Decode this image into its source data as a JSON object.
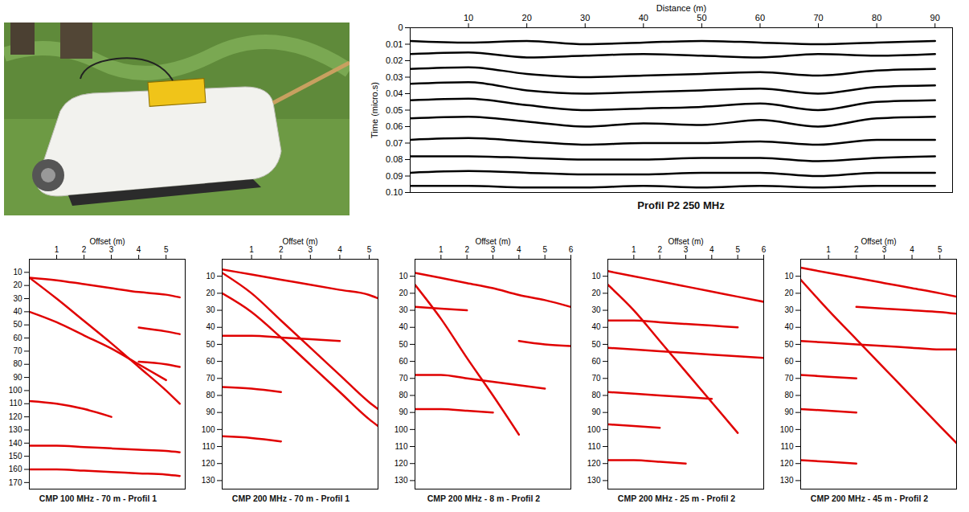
{
  "chart_data": [
    {
      "type": "line",
      "title": "Profil P2 250 MHz",
      "xlabel": "Distance (m)",
      "ylabel": "Time (micro.s)",
      "xlim": [
        0,
        93
      ],
      "xticks": [
        10,
        20,
        30,
        40,
        50,
        60,
        70,
        80,
        90
      ],
      "ylim": [
        0,
        0.1
      ],
      "yticks": [
        0,
        0.01,
        0.02,
        0.03,
        0.04,
        0.05,
        0.06,
        0.07,
        0.08,
        0.09,
        {
          "value": 0.1,
          "label": "0.10"
        }
      ],
      "x": [
        0,
        10,
        20,
        30,
        40,
        50,
        60,
        70,
        80,
        90
      ],
      "series": [
        {
          "color": "#000000",
          "values": [
            0.008,
            0.009,
            0.008,
            0.01,
            0.009,
            0.008,
            0.009,
            0.01,
            0.009,
            0.008
          ]
        },
        {
          "color": "#000000",
          "values": [
            0.016,
            0.015,
            0.018,
            0.017,
            0.016,
            0.017,
            0.018,
            0.016,
            0.017,
            0.016
          ]
        },
        {
          "color": "#000000",
          "values": [
            0.025,
            0.024,
            0.028,
            0.03,
            0.029,
            0.028,
            0.027,
            0.029,
            0.026,
            0.025
          ]
        },
        {
          "color": "#000000",
          "values": [
            0.034,
            0.033,
            0.038,
            0.04,
            0.039,
            0.038,
            0.037,
            0.04,
            0.036,
            0.035
          ]
        },
        {
          "color": "#000000",
          "values": [
            0.044,
            0.043,
            0.047,
            0.05,
            0.049,
            0.048,
            0.046,
            0.05,
            0.045,
            0.044
          ]
        },
        {
          "color": "#000000",
          "values": [
            0.055,
            0.054,
            0.057,
            0.06,
            0.058,
            0.059,
            0.056,
            0.06,
            0.055,
            0.054
          ]
        },
        {
          "color": "#000000",
          "values": [
            0.068,
            0.067,
            0.069,
            0.071,
            0.07,
            0.07,
            0.069,
            0.071,
            0.068,
            0.068
          ]
        },
        {
          "color": "#000000",
          "values": [
            0.078,
            0.078,
            0.079,
            0.08,
            0.08,
            0.079,
            0.079,
            0.081,
            0.079,
            0.078
          ]
        },
        {
          "color": "#000000",
          "values": [
            0.088,
            0.087,
            0.088,
            0.089,
            0.089,
            0.088,
            0.088,
            0.09,
            0.088,
            0.088
          ]
        },
        {
          "color": "#000000",
          "values": [
            0.096,
            0.096,
            0.097,
            0.097,
            0.096,
            0.097,
            0.096,
            0.097,
            0.096,
            0.096
          ]
        }
      ]
    },
    {
      "type": "line",
      "title": "CMP 100 MHz - 70 m - Profil 1",
      "xlabel": "Offset (m)",
      "xlim": [
        0,
        5.7
      ],
      "xticks": [
        1,
        2,
        3,
        4,
        5
      ],
      "ylim": [
        0,
        175
      ],
      "yticks": [
        10,
        20,
        30,
        40,
        50,
        60,
        70,
        80,
        90,
        100,
        110,
        120,
        130,
        140,
        150,
        160,
        170
      ],
      "x": [
        0,
        1,
        2,
        3,
        4,
        5,
        5.5
      ],
      "series": [
        {
          "color": "#e00000",
          "values": [
            14,
            16,
            19,
            22,
            25,
            27,
            29
          ]
        },
        {
          "color": "#e00000",
          "values": [
            14,
            30,
            47,
            64,
            82,
            100,
            110
          ]
        },
        {
          "color": "#e00000",
          "values": [
            40,
            48,
            58,
            68,
            80,
            92,
            null
          ]
        },
        {
          "color": "#e00000",
          "values": [
            null,
            null,
            null,
            null,
            52,
            55,
            57
          ]
        },
        {
          "color": "#e00000",
          "values": [
            null,
            null,
            null,
            null,
            78,
            80,
            82
          ]
        },
        {
          "color": "#e00000",
          "values": [
            108,
            110,
            114,
            120,
            null,
            null,
            null
          ]
        },
        {
          "color": "#e00000",
          "values": [
            142,
            142,
            143,
            144,
            145,
            146,
            147
          ]
        },
        {
          "color": "#e00000",
          "values": [
            160,
            160,
            161,
            162,
            163,
            164,
            165
          ]
        }
      ]
    },
    {
      "type": "line",
      "title": "CMP 200 MHz - 70 m - Profil 1",
      "xlabel": "Offset (m)",
      "xlim": [
        0,
        5.3
      ],
      "xticks": [
        1,
        2,
        3,
        4,
        5
      ],
      "ylim": [
        0,
        135
      ],
      "yticks": [
        10,
        20,
        30,
        40,
        50,
        60,
        70,
        80,
        90,
        100,
        110,
        120,
        130
      ],
      "x": [
        0,
        1,
        2,
        3,
        4,
        5,
        5.3
      ],
      "series": [
        {
          "color": "#e00000",
          "values": [
            6,
            9,
            12,
            15,
            18,
            21,
            23
          ]
        },
        {
          "color": "#e00000",
          "values": [
            8,
            20,
            36,
            52,
            68,
            84,
            88
          ]
        },
        {
          "color": "#e00000",
          "values": [
            20,
            31,
            46,
            62,
            78,
            94,
            98
          ]
        },
        {
          "color": "#e00000",
          "values": [
            45,
            45,
            46,
            47,
            48,
            null,
            null
          ]
        },
        {
          "color": "#e00000",
          "values": [
            75,
            76,
            78,
            null,
            null,
            null,
            null
          ]
        },
        {
          "color": "#e00000",
          "values": [
            104,
            105,
            107,
            null,
            null,
            null,
            null
          ]
        }
      ]
    },
    {
      "type": "line",
      "title": "CMP 200 MHz - 8 m - Profil 2",
      "xlabel": "Offset (m)",
      "xlim": [
        0,
        6
      ],
      "xticks": [
        1,
        2,
        3,
        4,
        5,
        6
      ],
      "ylim": [
        0,
        135
      ],
      "yticks": [
        10,
        20,
        30,
        40,
        50,
        60,
        70,
        80,
        90,
        100,
        110,
        120,
        130
      ],
      "x": [
        0,
        1,
        2,
        3,
        4,
        5,
        6
      ],
      "series": [
        {
          "color": "#e00000",
          "values": [
            8,
            11,
            14,
            17,
            21,
            24,
            28
          ]
        },
        {
          "color": "#e00000",
          "values": [
            15,
            35,
            58,
            80,
            103,
            null,
            null
          ]
        },
        {
          "color": "#e00000",
          "values": [
            28,
            29,
            30,
            null,
            null,
            null,
            null
          ]
        },
        {
          "color": "#e00000",
          "values": [
            null,
            null,
            null,
            null,
            48,
            50,
            51
          ]
        },
        {
          "color": "#e00000",
          "values": [
            68,
            68,
            70,
            72,
            74,
            76,
            null
          ]
        },
        {
          "color": "#e00000",
          "values": [
            88,
            88,
            89,
            90,
            null,
            null,
            null
          ]
        }
      ]
    },
    {
      "type": "line",
      "title": "CMP 200 MHz - 25 m - Profil 2",
      "xlabel": "Offset (m)",
      "xlim": [
        0,
        6
      ],
      "xticks": [
        1,
        2,
        3,
        4,
        5,
        6
      ],
      "ylim": [
        0,
        135
      ],
      "yticks": [
        10,
        20,
        30,
        40,
        50,
        60,
        70,
        80,
        90,
        100,
        110,
        120,
        130
      ],
      "x": [
        0,
        1,
        2,
        3,
        4,
        5,
        6
      ],
      "series": [
        {
          "color": "#e00000",
          "values": [
            7,
            10,
            13,
            16,
            19,
            22,
            25
          ]
        },
        {
          "color": "#e00000",
          "values": [
            15,
            30,
            48,
            66,
            84,
            102,
            null
          ]
        },
        {
          "color": "#e00000",
          "values": [
            36,
            36,
            37,
            38,
            39,
            40,
            null
          ]
        },
        {
          "color": "#e00000",
          "values": [
            52,
            53,
            54,
            55,
            56,
            57,
            58
          ]
        },
        {
          "color": "#e00000",
          "values": [
            78,
            79,
            80,
            81,
            82,
            null,
            null
          ]
        },
        {
          "color": "#e00000",
          "values": [
            97,
            98,
            99,
            null,
            null,
            null,
            null
          ]
        },
        {
          "color": "#e00000",
          "values": [
            118,
            118,
            119,
            120,
            null,
            null,
            null
          ]
        }
      ]
    },
    {
      "type": "line",
      "title": "CMP 200 MHz - 45 m - Profil 2",
      "xlabel": "Offset (m)",
      "xlim": [
        0,
        5.6
      ],
      "xticks": [
        1,
        2,
        3,
        4,
        5
      ],
      "ylim": [
        0,
        135
      ],
      "yticks": [
        10,
        20,
        30,
        40,
        50,
        60,
        70,
        80,
        90,
        100,
        110,
        120,
        130
      ],
      "x": [
        0,
        1,
        2,
        3,
        4,
        5,
        5.6
      ],
      "series": [
        {
          "color": "#e00000",
          "values": [
            5,
            8,
            11,
            14,
            17,
            20,
            22
          ]
        },
        {
          "color": "#e00000",
          "values": [
            12,
            30,
            47,
            64,
            81,
            98,
            108
          ]
        },
        {
          "color": "#e00000",
          "values": [
            null,
            null,
            28,
            29,
            30,
            31,
            32
          ]
        },
        {
          "color": "#e00000",
          "values": [
            48,
            49,
            50,
            51,
            52,
            53,
            53
          ]
        },
        {
          "color": "#e00000",
          "values": [
            68,
            69,
            70,
            null,
            null,
            null,
            null
          ]
        },
        {
          "color": "#e00000",
          "values": [
            88,
            89,
            90,
            null,
            null,
            null,
            null
          ]
        },
        {
          "color": "#e00000",
          "values": [
            118,
            119,
            120,
            null,
            null,
            null,
            null
          ]
        }
      ]
    }
  ]
}
